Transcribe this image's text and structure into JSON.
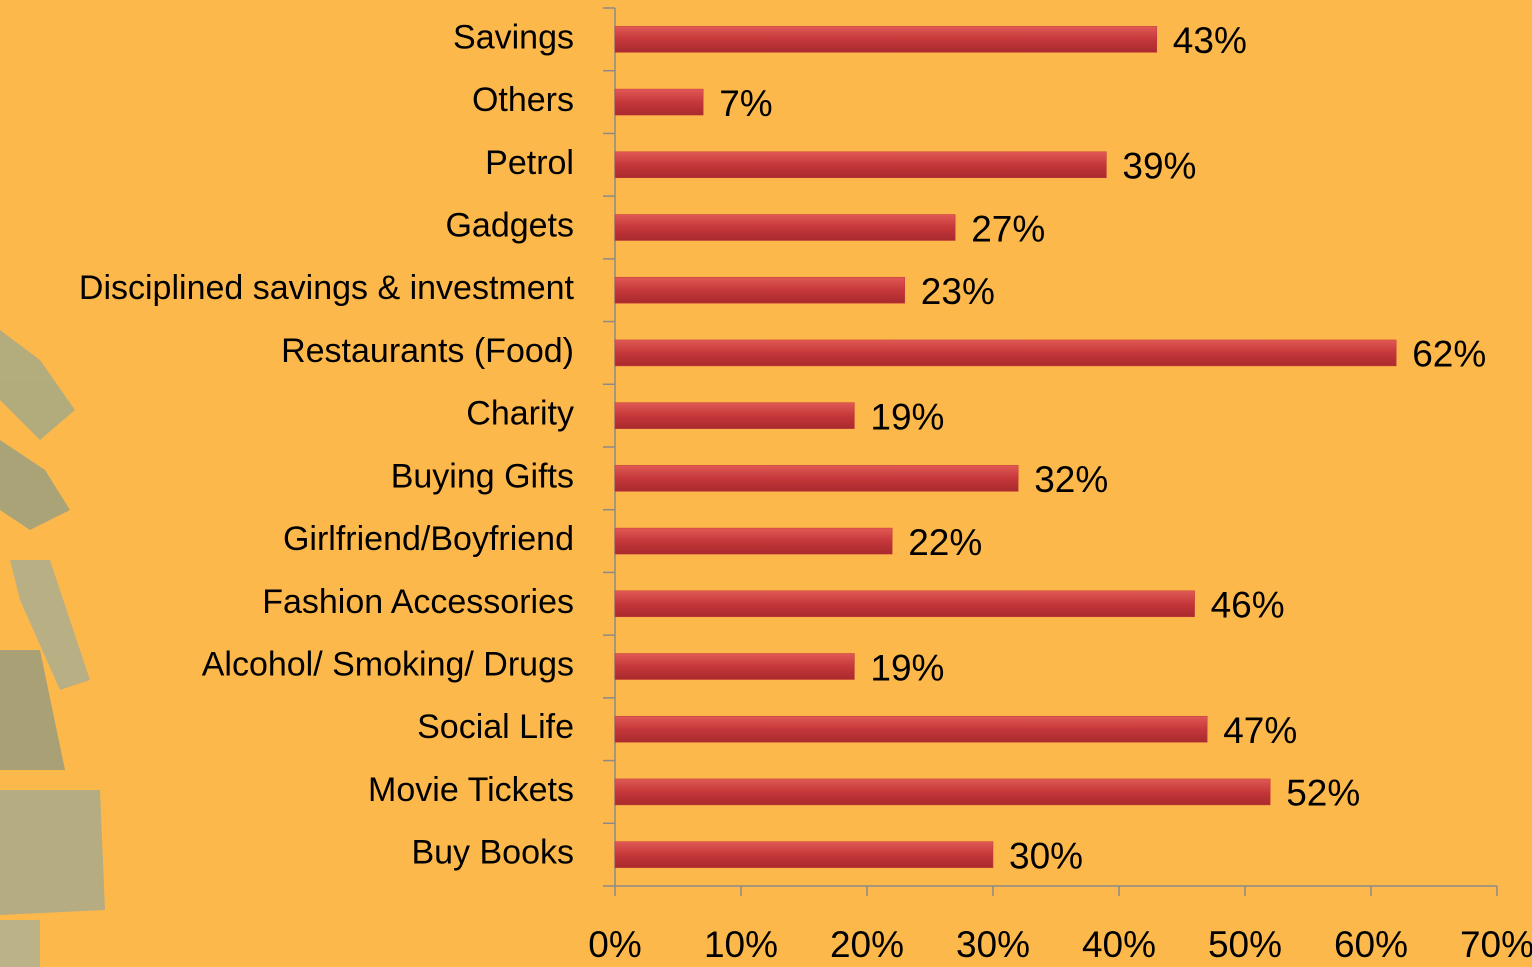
{
  "chart_data": {
    "type": "bar",
    "orientation": "horizontal",
    "categories": [
      "Savings",
      "Others",
      "Petrol",
      "Gadgets",
      "Disciplined savings & investment",
      "Restaurants (Food)",
      "Charity",
      "Buying Gifts",
      "Girlfriend/Boyfriend",
      "Fashion Accessories",
      "Alcohol/ Smoking/ Drugs",
      "Social Life",
      "Movie Tickets",
      "Buy Books"
    ],
    "values": [
      43,
      7,
      39,
      27,
      23,
      62,
      19,
      32,
      22,
      46,
      19,
      47,
      52,
      30
    ],
    "value_labels": [
      "43%",
      "7%",
      "39%",
      "27%",
      "23%",
      "62%",
      "19%",
      "32%",
      "22%",
      "46%",
      "19%",
      "47%",
      "52%",
      "30%"
    ],
    "color": "#c5373a",
    "xlim": [
      0,
      70
    ],
    "xticks": [
      {
        "value": 0,
        "label": "0%"
      },
      {
        "value": 10,
        "label": "10%"
      },
      {
        "value": 20,
        "label": "20%"
      },
      {
        "value": 30,
        "label": "30%"
      },
      {
        "value": 40,
        "label": "40%"
      },
      {
        "value": 50,
        "label": "50%"
      },
      {
        "value": 60,
        "label": "60%"
      },
      {
        "value": 70,
        "label": "70%"
      }
    ],
    "grid": false
  }
}
